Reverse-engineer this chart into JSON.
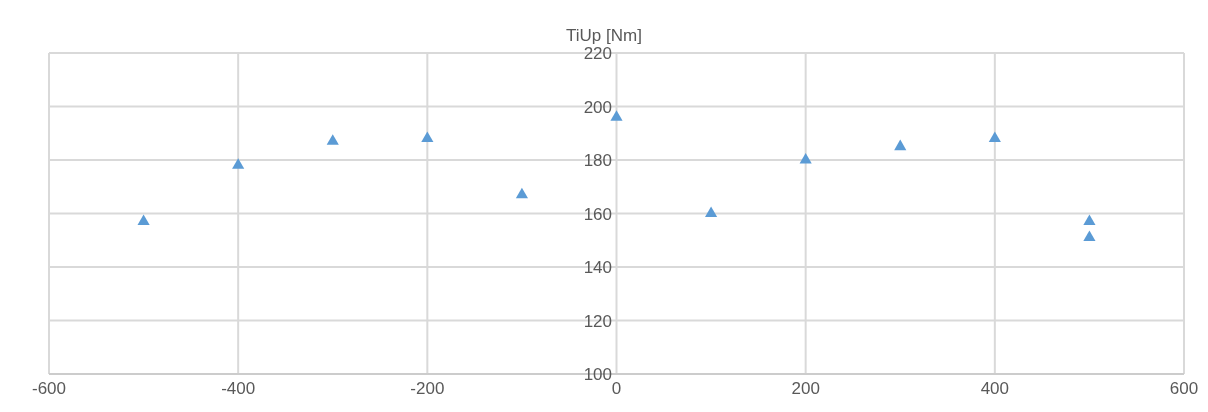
{
  "chart_data": {
    "type": "scatter",
    "ylabel": "TiUp [Nm]",
    "x": [
      -500,
      -400,
      -300,
      -200,
      -100,
      0,
      100,
      200,
      300,
      400,
      500,
      500
    ],
    "series": [
      {
        "color": "#5b9bd5",
        "values": [
          157,
          178,
          187,
          188,
          167,
          196,
          160,
          180,
          185,
          188,
          157,
          151
        ]
      }
    ],
    "xlim": [
      -600,
      600
    ],
    "xticks": [
      -600,
      -400,
      -200,
      0,
      200,
      400,
      600
    ],
    "ylim": [
      100,
      220
    ],
    "yticks": [
      100,
      120,
      140,
      160,
      180,
      200,
      220
    ],
    "grid": true,
    "marker": "triangle",
    "legend": false
  }
}
